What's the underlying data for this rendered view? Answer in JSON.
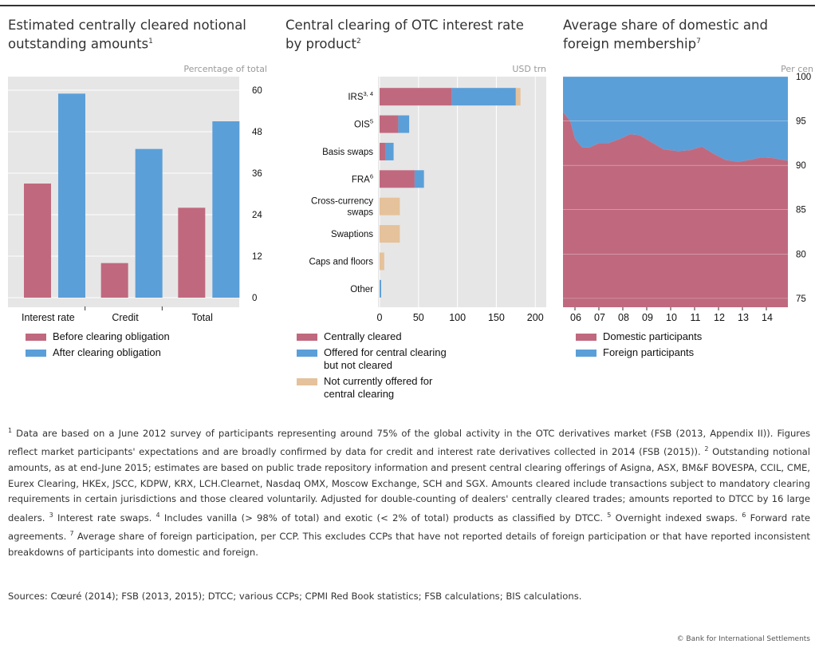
{
  "colors": {
    "red": "#C0697E",
    "blue": "#5B9FD8",
    "tan": "#E5C29B",
    "plot_bg": "#E6E6E6",
    "grid": "#ffffff"
  },
  "panels": [
    {
      "title": "Estimated centrally cleared notional\noutstanding amounts",
      "sup": "1",
      "unit": "Percentage of total"
    },
    {
      "title": "Central clearing of OTC interest rate\nby product",
      "sup": "2",
      "unit": "USD trn"
    },
    {
      "title": "Average share of domestic and\nforeign membership",
      "sup": "7",
      "unit": "Per cen"
    }
  ],
  "chart_data": [
    {
      "type": "bar",
      "categories": [
        "Interest rate",
        "Credit",
        "Total"
      ],
      "series": [
        {
          "name": "Before clearing obligation",
          "color": "#C0697E",
          "values": [
            33,
            10,
            26
          ]
        },
        {
          "name": "After clearing obligation",
          "color": "#5B9FD8",
          "values": [
            59,
            43,
            51
          ]
        }
      ],
      "ylim": [
        0,
        60
      ],
      "yticks": [
        "0",
        "12",
        "24",
        "36",
        "48",
        "60"
      ],
      "ytick_values": [
        0,
        12,
        24,
        36,
        48,
        60
      ],
      "axis_side": "right",
      "grid": true,
      "legend_position": "below"
    },
    {
      "type": "bar",
      "orientation": "horizontal",
      "stacked": true,
      "categories": [
        {
          "label": "IRS",
          "sup": "3, 4"
        },
        {
          "label": "OIS",
          "sup": "5"
        },
        {
          "label": "Basis swaps",
          "sup": ""
        },
        {
          "label": "FRA",
          "sup": "6"
        },
        {
          "label": "Cross-currency\nswaps",
          "sup": ""
        },
        {
          "label": "Swaptions",
          "sup": ""
        },
        {
          "label": "Caps and floors",
          "sup": ""
        },
        {
          "label": "Other",
          "sup": ""
        }
      ],
      "series": [
        {
          "name": "Centrally cleared",
          "color": "#C0697E",
          "values": [
            93,
            24,
            8,
            45,
            0,
            0,
            0,
            0
          ]
        },
        {
          "name": "Offered for central clearing\nbut not cleared",
          "color": "#5B9FD8",
          "values": [
            82,
            14,
            10,
            12,
            0,
            0,
            0,
            2
          ]
        },
        {
          "name": "Not currently offered for\ncentral clearing",
          "color": "#E5C29B",
          "values": [
            6,
            0,
            0,
            0,
            26,
            26,
            6,
            0
          ]
        }
      ],
      "xlim": [
        0,
        210
      ],
      "xticks": [
        "0",
        "50",
        "100",
        "150",
        "200"
      ],
      "xtick_values": [
        0,
        50,
        100,
        150,
        200
      ],
      "grid": true,
      "legend_position": "below"
    },
    {
      "type": "area",
      "stacked": true,
      "x": [
        2005.5,
        2005.8,
        2006.0,
        2006.3,
        2006.6,
        2007.0,
        2007.4,
        2007.9,
        2008.3,
        2008.7,
        2009.2,
        2009.7,
        2010.3,
        2010.8,
        2011.3,
        2011.8,
        2012.3,
        2012.8,
        2013.3,
        2013.8,
        2014.3,
        2014.9
      ],
      "xticks": [
        "06",
        "07",
        "08",
        "09",
        "10",
        "11",
        "12",
        "13",
        "14"
      ],
      "xtick_values": [
        2006,
        2007,
        2008,
        2009,
        2010,
        2011,
        2012,
        2013,
        2014
      ],
      "xlim": [
        2005.5,
        2014.9
      ],
      "series": [
        {
          "name": "Domestic participants",
          "color": "#C0697E",
          "values": [
            96,
            95,
            93,
            92,
            92,
            92.5,
            92.5,
            93,
            93.5,
            93.4,
            92.6,
            91.8,
            91.6,
            91.7,
            92.1,
            91.3,
            90.6,
            90.4,
            90.6,
            90.9,
            90.8,
            90.5
          ]
        },
        {
          "name": "Foreign participants",
          "color": "#5B9FD8",
          "values": "remainder to 100"
        }
      ],
      "ylim": [
        74,
        100
      ],
      "yticks": [
        "75",
        "80",
        "85",
        "90",
        "95",
        "100"
      ],
      "ytick_values": [
        75,
        80,
        85,
        90,
        95,
        100
      ],
      "axis_side": "right",
      "grid": true,
      "legend_position": "below"
    }
  ],
  "footnote": {
    "n1": "1",
    "t1": " Data are based on a June 2012 survey of participants representing around 75% of the global activity in the OTC derivatives market (FSB (2013, Appendix II)). Figures reflect market participants' expectations and are broadly confirmed by data for credit and interest rate derivatives collected in 2014 (FSB (2015)). ",
    "n2": "2",
    "t2": " Outstanding notional amounts, as at end-June 2015; estimates are based on public trade repository information and present central clearing offerings of Asigna, ASX, BM&F BOVESPA, CCIL, CME, Eurex Clearing, HKEx, JSCC, KDPW, KRX, LCH.Clearnet, Nasdaq OMX, Moscow Exchange, SCH and SGX. Amounts cleared include transactions subject to mandatory clearing requirements in certain jurisdictions and those cleared voluntarily. Adjusted for double-counting of dealers' centrally cleared trades; amounts reported to DTCC by 16 large dealers. ",
    "n3": "3",
    "t3": " Interest rate swaps. ",
    "n4": "4",
    "t4": " Includes vanilla (> 98% of total) and exotic (< 2% of total) products as classified by DTCC. ",
    "n5": "5",
    "t5": " Overnight indexed swaps. ",
    "n6": "6",
    "t6": " Forward rate agreements. ",
    "n7": "7",
    "t7": " Average share of foreign participation, per CCP. This excludes CCPs that have not reported details of foreign participation or that have reported inconsistent breakdowns of participants into domestic and foreign."
  },
  "sources": "Sources: Cœuré (2014); FSB (2013, 2015); DTCC; various CCPs; CPMI Red Book statistics; FSB calculations; BIS calculations.",
  "copyright": "© Bank for International Settlements"
}
